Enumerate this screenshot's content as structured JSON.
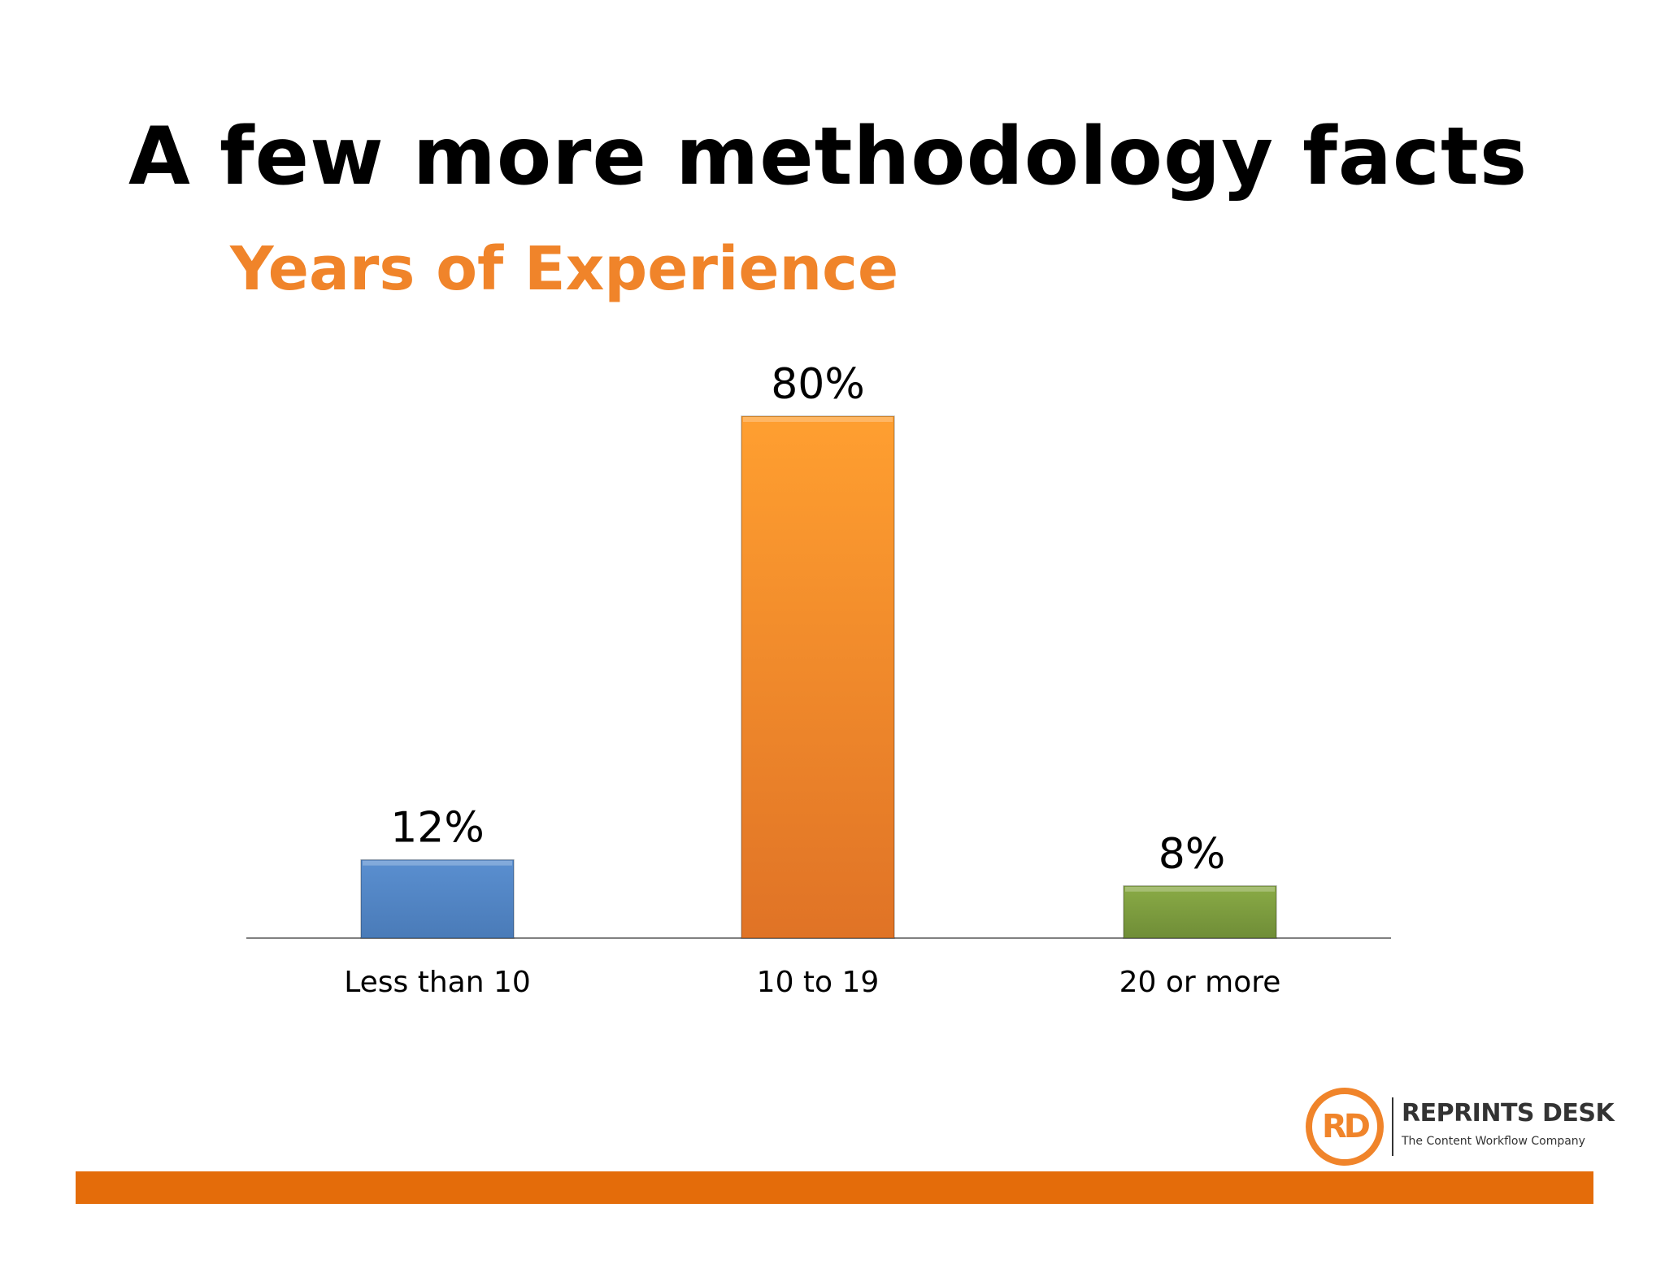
{
  "slide": {
    "title": "A few more methodology facts"
  },
  "colors": {
    "title_accent": "#f0842a",
    "footer_bar": "#e46c0a"
  },
  "logo": {
    "name": "REPRINTS DESK",
    "tagline": "The Content Workflow Company",
    "mark": "RD"
  },
  "chart_data": {
    "type": "bar",
    "title": "Years of Experience",
    "xlabel": "",
    "ylabel": "",
    "categories": [
      "Less than 10",
      "10 to 19",
      "20 or more"
    ],
    "values": [
      12,
      80,
      8
    ],
    "labels": [
      "12%",
      "80%",
      "8%"
    ],
    "unit": "%",
    "ylim": [
      0,
      80
    ],
    "grid": false,
    "legend": "none",
    "colors": [
      "#4f81bd",
      "#f7923a",
      "#77933c"
    ]
  }
}
